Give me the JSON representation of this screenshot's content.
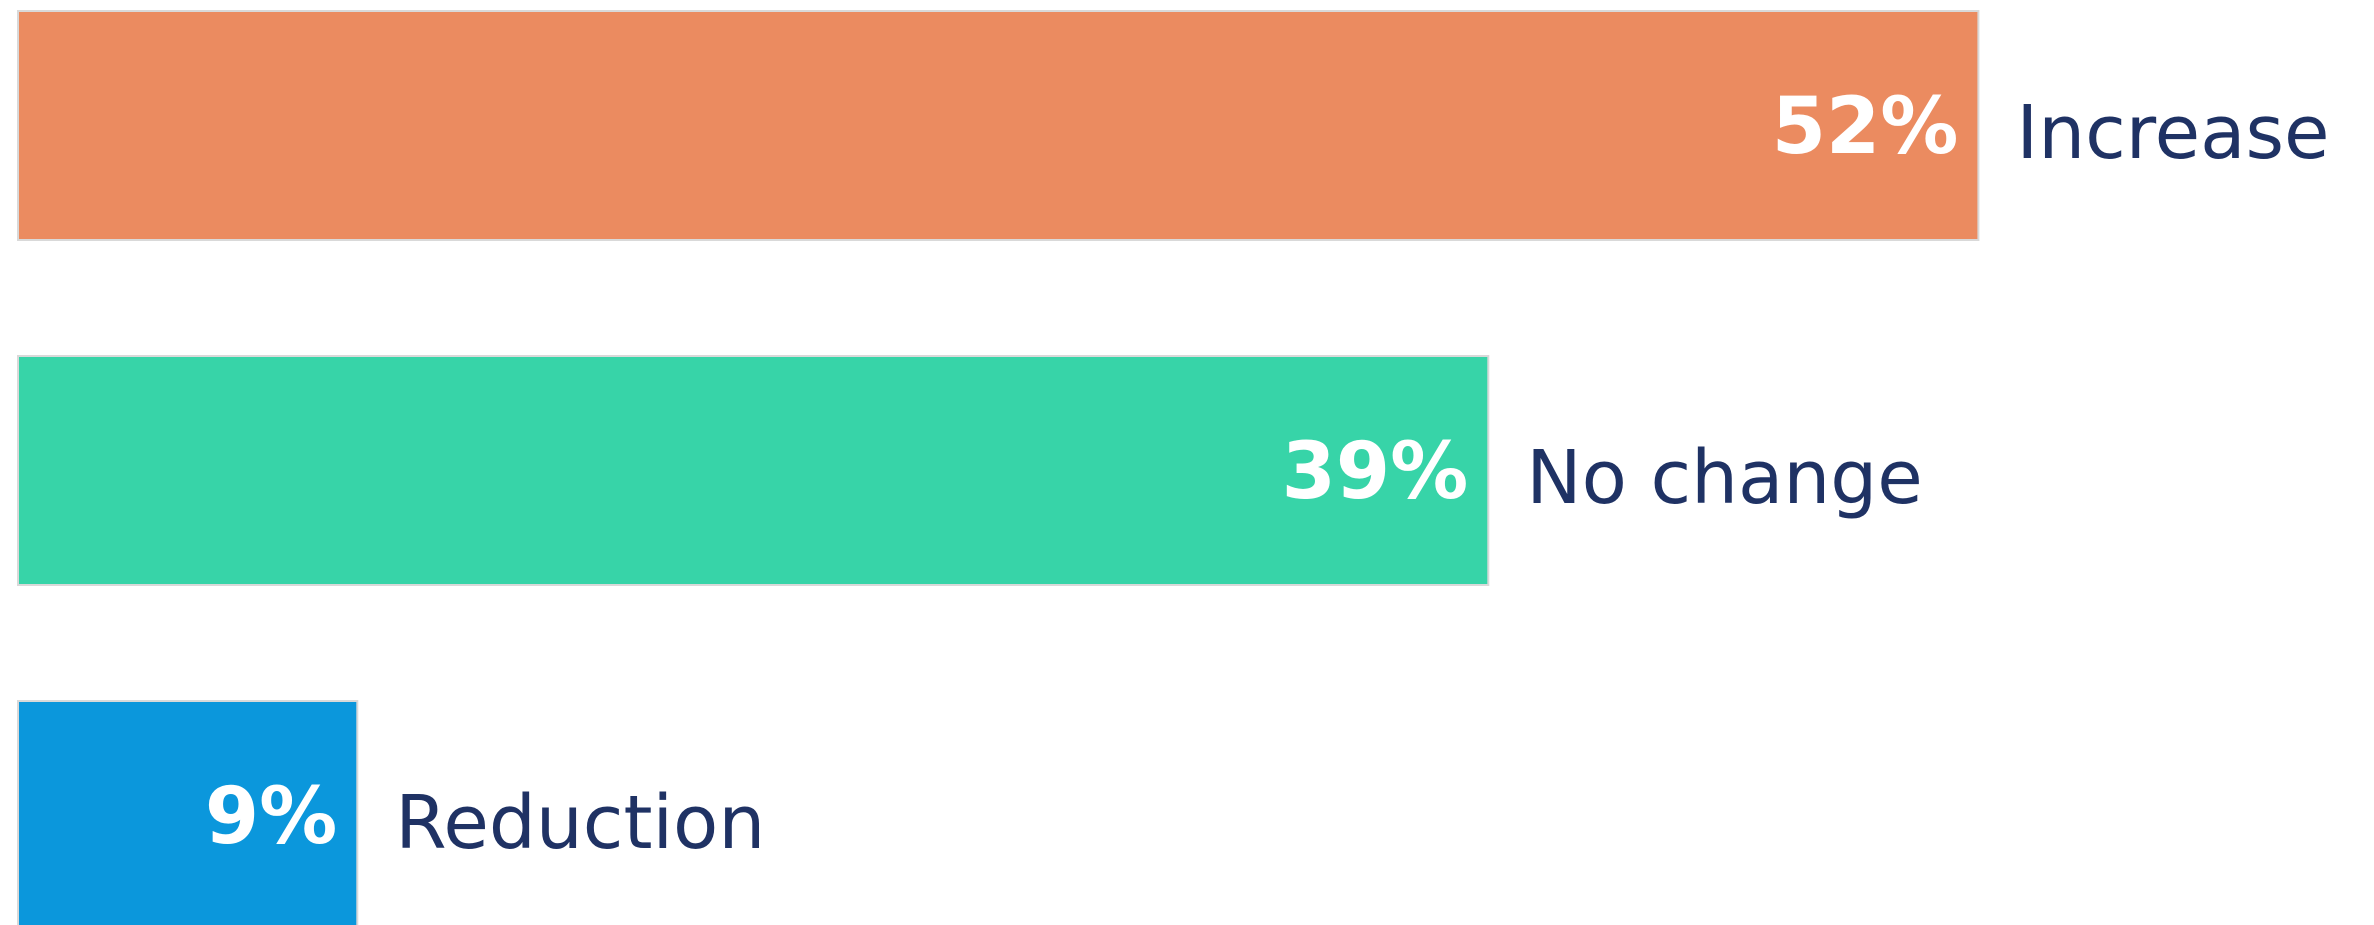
{
  "chart_data": {
    "type": "bar",
    "orientation": "horizontal",
    "categories": [
      "Increase",
      "No change",
      "Reduction"
    ],
    "values": [
      52,
      39,
      9
    ],
    "value_labels": [
      "52%",
      "39%",
      "9%"
    ],
    "colors": [
      "#eb8b60",
      "#37d4a8",
      "#0b97dc"
    ]
  }
}
